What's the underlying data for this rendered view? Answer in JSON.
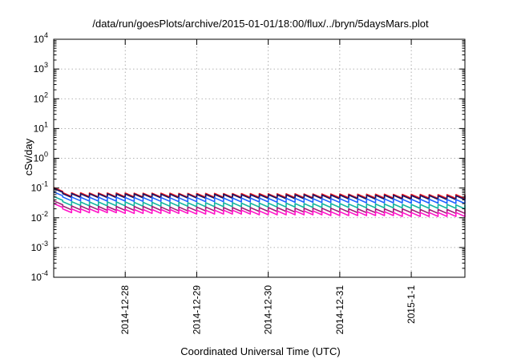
{
  "chart_data": {
    "type": "line",
    "title": "/data/run/goesPlots/archive/2015-01-01/18:00/flux/../bryn/5daysMars.plot",
    "xlabel": "Coordinated Universal Time (UTC)",
    "ylabel": "cSv/day",
    "yscale": "log",
    "ylim": [
      0.0001,
      10000
    ],
    "y_ticks": [
      {
        "base": "10",
        "exp": "-4"
      },
      {
        "base": "10",
        "exp": "-3"
      },
      {
        "base": "10",
        "exp": "-2"
      },
      {
        "base": "10",
        "exp": "-1"
      },
      {
        "base": "10",
        "exp": "0"
      },
      {
        "base": "10",
        "exp": "1"
      },
      {
        "base": "10",
        "exp": "2"
      },
      {
        "base": "10",
        "exp": "3"
      },
      {
        "base": "10",
        "exp": "4"
      }
    ],
    "xlim": [
      "2014-12-27 00:00",
      "2015-01-01 18:00"
    ],
    "x_ticks": [
      "2014-12-28",
      "2014-12-29",
      "2014-12-30",
      "2014-12-31",
      "2015-1-1"
    ],
    "grid": true,
    "sample_period_hours": 3,
    "series": [
      {
        "color": "#e8141c",
        "values": [
          0.104,
          0.07,
          0.069,
          0.069,
          0.068,
          0.068,
          0.068,
          0.068,
          0.068,
          0.067,
          0.067,
          0.067,
          0.067,
          0.067,
          0.066,
          0.066,
          0.066,
          0.066,
          0.066,
          0.065,
          0.065,
          0.065,
          0.065,
          0.065,
          0.064,
          0.064,
          0.064,
          0.064,
          0.063,
          0.063,
          0.063,
          0.063,
          0.063,
          0.062,
          0.062,
          0.062,
          0.062,
          0.062,
          0.061,
          0.061,
          0.061,
          0.061,
          0.06,
          0.06,
          0.06,
          0.06,
          0.06
        ]
      },
      {
        "color": "#141464",
        "values": [
          0.097,
          0.065,
          0.065,
          0.064,
          0.064,
          0.064,
          0.064,
          0.063,
          0.063,
          0.063,
          0.063,
          0.063,
          0.062,
          0.062,
          0.062,
          0.062,
          0.061,
          0.061,
          0.061,
          0.061,
          0.061,
          0.06,
          0.06,
          0.06,
          0.06,
          0.059,
          0.059,
          0.059,
          0.059,
          0.059,
          0.058,
          0.058,
          0.058,
          0.058,
          0.057,
          0.057,
          0.057,
          0.057,
          0.057,
          0.056,
          0.056,
          0.056,
          0.056,
          0.055,
          0.055,
          0.055,
          0.055
        ]
      },
      {
        "color": "#1e64ff",
        "values": [
          0.074,
          0.05,
          0.05,
          0.049,
          0.049,
          0.049,
          0.049,
          0.049,
          0.048,
          0.048,
          0.048,
          0.048,
          0.048,
          0.047,
          0.047,
          0.047,
          0.047,
          0.047,
          0.047,
          0.046,
          0.046,
          0.046,
          0.046,
          0.046,
          0.045,
          0.045,
          0.045,
          0.045,
          0.045,
          0.044,
          0.044,
          0.044,
          0.044,
          0.044,
          0.043,
          0.043,
          0.043,
          0.043,
          0.043,
          0.042,
          0.042,
          0.042,
          0.042,
          0.042,
          0.041,
          0.041,
          0.041
        ]
      },
      {
        "color": "#14b4a0",
        "values": [
          0.052,
          0.035,
          0.035,
          0.034,
          0.034,
          0.034,
          0.034,
          0.034,
          0.034,
          0.033,
          0.033,
          0.033,
          0.033,
          0.033,
          0.033,
          0.032,
          0.032,
          0.032,
          0.032,
          0.032,
          0.032,
          0.031,
          0.031,
          0.031,
          0.031,
          0.031,
          0.031,
          0.03,
          0.03,
          0.03,
          0.03,
          0.03,
          0.03,
          0.029,
          0.029,
          0.029,
          0.029,
          0.029,
          0.029,
          0.028,
          0.028,
          0.028,
          0.028,
          0.028,
          0.028,
          0.027,
          0.027
        ]
      },
      {
        "color": "#a01e78",
        "values": [
          0.037,
          0.025,
          0.025,
          0.025,
          0.025,
          0.024,
          0.024,
          0.024,
          0.024,
          0.024,
          0.024,
          0.024,
          0.023,
          0.023,
          0.023,
          0.023,
          0.023,
          0.023,
          0.023,
          0.022,
          0.022,
          0.022,
          0.022,
          0.022,
          0.022,
          0.022,
          0.021,
          0.021,
          0.021,
          0.021,
          0.021,
          0.021,
          0.021,
          0.02,
          0.02,
          0.02,
          0.02,
          0.02,
          0.02,
          0.02,
          0.019,
          0.019,
          0.019,
          0.019,
          0.019,
          0.019,
          0.019
        ]
      },
      {
        "color": "#ff14c8",
        "values": [
          0.03,
          0.02,
          0.02,
          0.02,
          0.02,
          0.02,
          0.02,
          0.019,
          0.019,
          0.019,
          0.019,
          0.019,
          0.019,
          0.019,
          0.019,
          0.018,
          0.018,
          0.018,
          0.018,
          0.018,
          0.018,
          0.018,
          0.017,
          0.017,
          0.017,
          0.017,
          0.017,
          0.017,
          0.017,
          0.017,
          0.016,
          0.016,
          0.016,
          0.016,
          0.016,
          0.016,
          0.016,
          0.016,
          0.015,
          0.015,
          0.015,
          0.015,
          0.015,
          0.015,
          0.015,
          0.015,
          0.014
        ]
      }
    ]
  }
}
